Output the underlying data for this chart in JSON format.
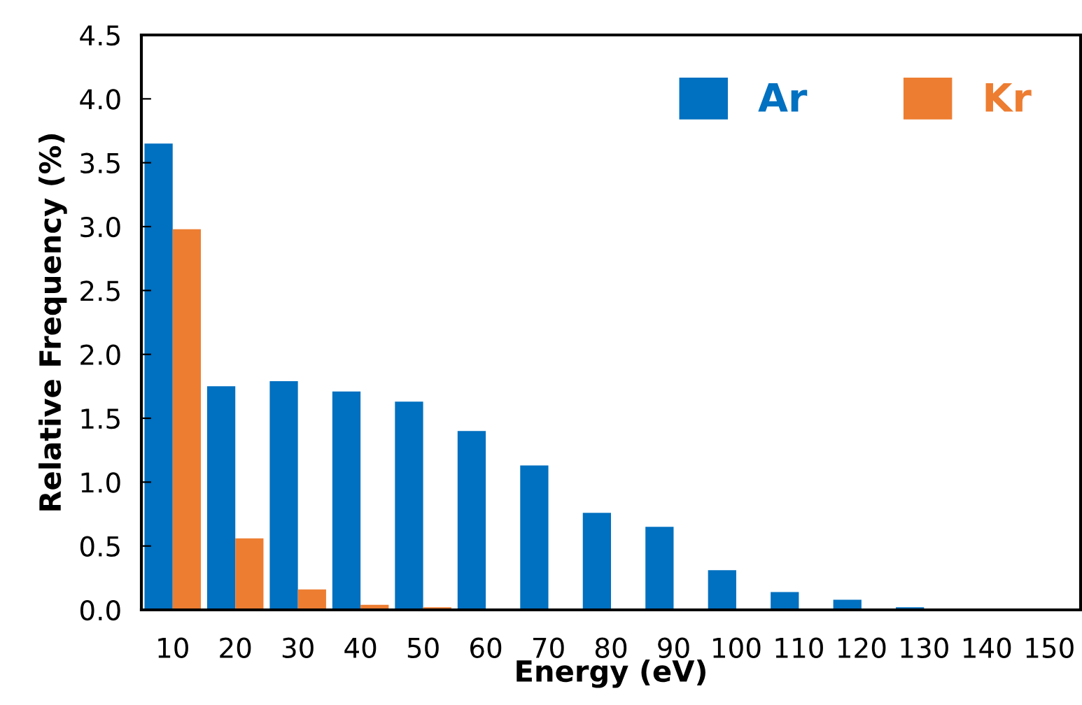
{
  "chart_data": {
    "type": "bar",
    "xlabel": "Energy (eV)",
    "ylabel": "Relative Frequency (%)",
    "categories": [
      "10",
      "20",
      "30",
      "40",
      "50",
      "60",
      "70",
      "80",
      "90",
      "100",
      "110",
      "120",
      "130",
      "140",
      "150"
    ],
    "series": [
      {
        "name": "Ar",
        "color": "#0070c0",
        "values": [
          3.65,
          1.75,
          1.79,
          1.71,
          1.63,
          1.4,
          1.13,
          0.76,
          0.65,
          0.31,
          0.14,
          0.08,
          0.02,
          0,
          0
        ]
      },
      {
        "name": "Kr",
        "color": "#ed7d31",
        "values": [
          2.98,
          0.56,
          0.16,
          0.04,
          0.02,
          0,
          0,
          0,
          0,
          0,
          0,
          0,
          0,
          0,
          0
        ]
      }
    ],
    "ylim": [
      0,
      4.5
    ],
    "yticks": [
      {
        "value": 0,
        "label": "0.0"
      },
      0.5,
      {
        "value": 1,
        "label": "1.0"
      },
      1.5,
      {
        "value": 2,
        "label": "2.0"
      },
      2.5,
      {
        "value": 3,
        "label": "3.0"
      },
      3.5,
      {
        "value": 4,
        "label": "4.0"
      },
      4.5
    ],
    "legend": "top right",
    "grid": false
  }
}
